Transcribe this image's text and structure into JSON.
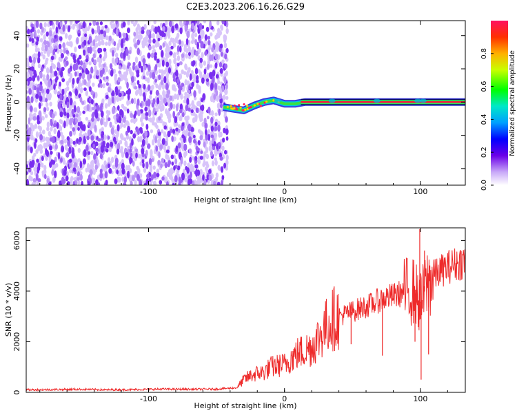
{
  "title": "C2E3.2023.206.16.26.G29",
  "colors": {
    "snr_line": "#ee2a2a",
    "scatter_noise": "#7a2ff0",
    "axis": "#000000"
  },
  "chart_data": [
    {
      "type": "heatmap",
      "xlabel": "Height of straight line (km)",
      "ylabel": "Frequency (Hz)",
      "xlim": [
        -190,
        133
      ],
      "ylim": [
        -50,
        49
      ],
      "x_ticks": [
        -100,
        0,
        100
      ],
      "y_ticks": [
        -40,
        -20,
        0,
        20,
        40
      ],
      "x_tick_labels": [
        "-100",
        "0",
        "100"
      ],
      "y_tick_labels": [
        "-40",
        "-20",
        "0",
        "20",
        "40"
      ],
      "noise_region_x": [
        -190,
        -42
      ],
      "signal_track": [
        {
          "x": -45,
          "y": -3
        },
        {
          "x": -38,
          "y": -4
        },
        {
          "x": -30,
          "y": -5
        },
        {
          "x": -22,
          "y": -2
        },
        {
          "x": -15,
          "y": 0
        },
        {
          "x": -8,
          "y": 1
        },
        {
          "x": 0,
          "y": -1
        },
        {
          "x": 8,
          "y": -1
        },
        {
          "x": 15,
          "y": 0
        },
        {
          "x": 40,
          "y": 0
        },
        {
          "x": 80,
          "y": 0
        },
        {
          "x": 100,
          "y": 0
        },
        {
          "x": 133,
          "y": 0
        }
      ],
      "colorbar": {
        "label": "Normalized spectral amplitude",
        "range": [
          0,
          1
        ],
        "ticks": [
          0.0,
          0.2,
          0.4,
          0.6,
          0.8
        ],
        "tick_labels": [
          "0.0",
          "0.2",
          "0.4",
          "0.6",
          "0.8"
        ]
      }
    },
    {
      "type": "line",
      "xlabel": "Height of straight line (km)",
      "ylabel": "SNR (10 * v/v)",
      "xlim": [
        -190,
        133
      ],
      "ylim": [
        0,
        6500
      ],
      "x_ticks": [
        -100,
        0,
        100
      ],
      "y_ticks": [
        0,
        2000,
        4000,
        6000
      ],
      "x_tick_labels": [
        "-100",
        "0",
        "100"
      ],
      "y_tick_labels": [
        "0",
        "2000",
        "4000",
        "6000"
      ],
      "series": [
        {
          "x": [
            -190,
            -170,
            -150,
            -130,
            -110,
            -90,
            -70,
            -50,
            -35,
            -30,
            -25,
            -20,
            -15,
            -10,
            -5,
            0,
            5,
            10,
            15,
            20,
            25,
            30,
            35,
            40,
            45,
            50,
            55,
            60,
            65,
            70,
            75,
            80,
            85,
            90,
            95,
            100,
            105,
            110,
            115,
            120,
            125,
            133
          ],
          "y": [
            100,
            110,
            120,
            100,
            110,
            130,
            120,
            130,
            180,
            500,
            650,
            750,
            800,
            1000,
            1050,
            1100,
            1350,
            1550,
            1650,
            1800,
            2150,
            2550,
            2900,
            3000,
            3100,
            3200,
            3300,
            3400,
            3500,
            3650,
            3750,
            3800,
            3900,
            4000,
            4000,
            3500,
            4300,
            4600,
            4800,
            4950,
            5050,
            5200
          ]
        }
      ],
      "spikes": [
        {
          "x": 49,
          "y": 1900
        },
        {
          "x": 72,
          "y": 1450
        },
        {
          "x": 96,
          "y": 2000
        },
        {
          "x": 99.5,
          "y": 6450
        },
        {
          "x": 100.5,
          "y": 500
        },
        {
          "x": 103,
          "y": 5600
        },
        {
          "x": 106,
          "y": 1500
        }
      ]
    }
  ]
}
